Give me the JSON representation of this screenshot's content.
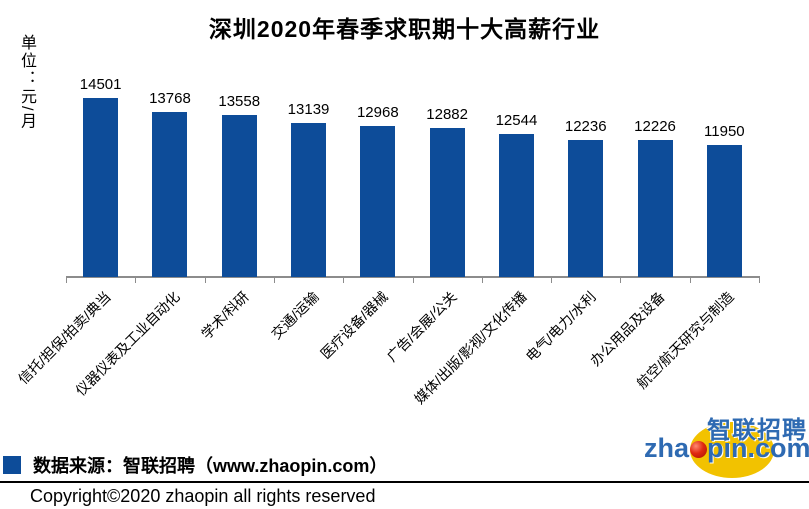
{
  "title": "深圳2020年春季求职期十大高薪行业",
  "y_axis_unit": "单位：元/月",
  "chart_data": {
    "type": "bar",
    "title": "深圳2020年春季求职期十大高薪行业",
    "ylabel": "单位：元/月",
    "xlabel": "",
    "categories": [
      "信托/担保/拍卖/典当",
      "仪器仪表及工业自动化",
      "学术/科研",
      "交通/运输",
      "医疗设备/器械",
      "广告/会展/公关",
      "媒体/出版/影视/文化传播",
      "电气/电力/水利",
      "办公用品及设备",
      "航空/航天研究与制造"
    ],
    "values": [
      14501,
      13768,
      13558,
      13139,
      12968,
      12882,
      12544,
      12236,
      12226,
      11950
    ],
    "value_labels_shown": true,
    "bar_color": "#0d4c99",
    "axis_color": "#8c8c8c",
    "grid": false,
    "y_axis_ticks_visible": false,
    "ylim": [
      4800,
      14900
    ],
    "legend_position": "bottom-left"
  },
  "legend": {
    "marker_color": "#0d4c99",
    "text": "数据来源：智联招聘（www.zhaopin.com）"
  },
  "footer": {
    "copyright": "Copyright©2020 zhaopin all rights reserved"
  },
  "logo": {
    "cn_text": "智联招聘",
    "en_prefix": "zha",
    "en_suffix": "pin.com",
    "yellow": "#f2c200",
    "red": "#d02410",
    "blue": "#2e6ab2"
  }
}
